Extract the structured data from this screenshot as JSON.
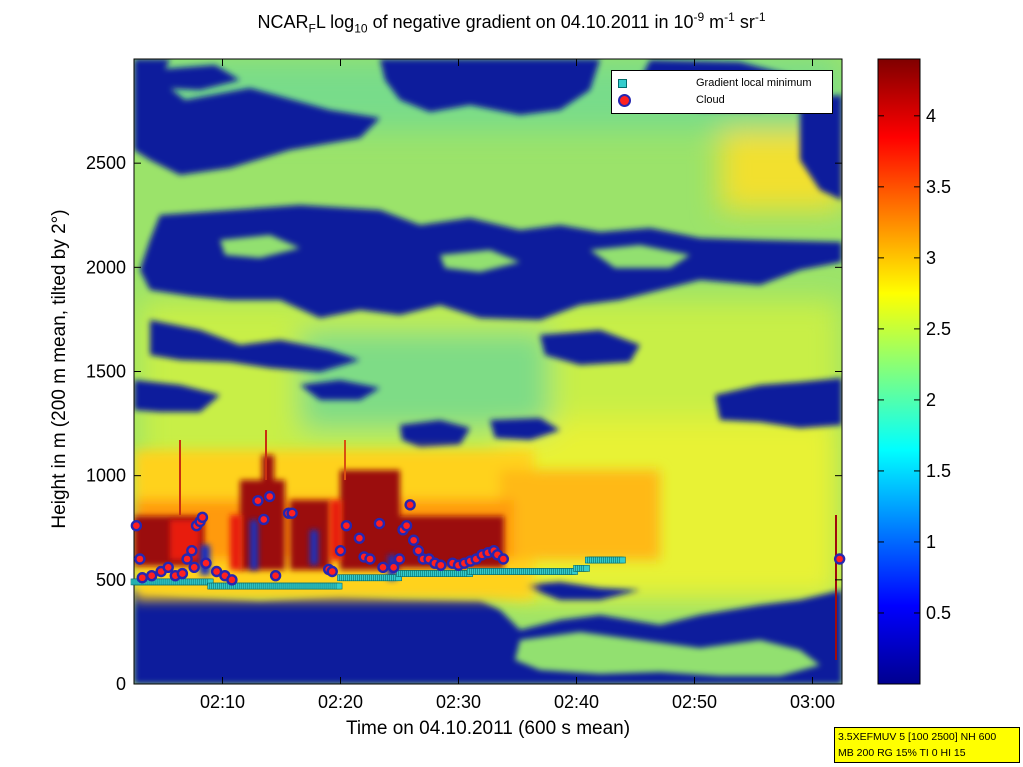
{
  "title": {
    "prefix": "NCAR",
    "sub1": "F",
    "mid1": "L log",
    "sub2": "10",
    "mid2": " of negative gradient on 04.10.2011 in 10",
    "sup1": "-9",
    "mid3": " m",
    "sup2": "-1",
    "mid4": " sr",
    "sup3": "-1"
  },
  "xlabel": "Time on 04.10.2011 (600 s mean)",
  "ylabel": "Height in m (200 m mean, tilted by 2°)",
  "legend": {
    "items": [
      {
        "label": "Gradient local minimum",
        "marker": "square",
        "color": "#33cccc"
      },
      {
        "label": "Cloud",
        "marker": "circle",
        "color": "#ff2020",
        "edge": "#2626b0"
      }
    ]
  },
  "stamp": {
    "line1": "3.5XEFMUV 5 [100 2500] NH 600",
    "line2": "MB 200 RG 15% TI 0 HI 15"
  },
  "chart_data": {
    "type": "heatmap",
    "x_axis": {
      "range_min": 122.5,
      "range_max": 182.5,
      "ticks": [
        130,
        140,
        150,
        160,
        170,
        180
      ],
      "tick_labels": [
        "02:10",
        "02:20",
        "02:30",
        "02:40",
        "02:50",
        "03:00"
      ]
    },
    "y_axis": {
      "range": [
        0,
        3000
      ],
      "ticks": [
        0,
        500,
        1000,
        1500,
        2000,
        2500
      ],
      "tick_labels": [
        "0",
        "500",
        "1000",
        "1500",
        "2000",
        "2500"
      ]
    },
    "colorbar": {
      "range": [
        0,
        4.4
      ],
      "ticks": [
        0.5,
        1,
        1.5,
        2,
        2.5,
        3,
        3.5,
        4
      ],
      "tick_labels": [
        "0.5",
        "1",
        "1.5",
        "2",
        "2.5",
        "3",
        "3.5",
        "4"
      ],
      "colormap": "jet"
    },
    "gradient_local_minimum": [
      {
        "t_start": 122.5,
        "t_end": 129,
        "height": 490
      },
      {
        "t_start": 129,
        "t_end": 140,
        "height": 470
      },
      {
        "t_start": 140,
        "t_end": 145,
        "height": 510
      },
      {
        "t_start": 145,
        "t_end": 151,
        "height": 530
      },
      {
        "t_start": 151,
        "t_end": 160,
        "height": 540
      },
      {
        "t_start": 160,
        "t_end": 161,
        "height": 555
      },
      {
        "t_start": 161,
        "t_end": 164,
        "height": 595
      }
    ],
    "cloud": [
      [
        122.7,
        760
      ],
      [
        123,
        600
      ],
      [
        123.2,
        510
      ],
      [
        124,
        520
      ],
      [
        124.8,
        540
      ],
      [
        125.4,
        560
      ],
      [
        126,
        520
      ],
      [
        126.6,
        530
      ],
      [
        127,
        600
      ],
      [
        127.4,
        640
      ],
      [
        127.6,
        560
      ],
      [
        127.8,
        760
      ],
      [
        128.1,
        780
      ],
      [
        128.3,
        800
      ],
      [
        128.6,
        580
      ],
      [
        129.5,
        540
      ],
      [
        130.2,
        520
      ],
      [
        130.8,
        500
      ],
      [
        133,
        880
      ],
      [
        133.5,
        790
      ],
      [
        134,
        900
      ],
      [
        134.5,
        520
      ],
      [
        135.6,
        820
      ],
      [
        135.9,
        820
      ],
      [
        139,
        550
      ],
      [
        139.3,
        540
      ],
      [
        140,
        640
      ],
      [
        140.5,
        760
      ],
      [
        141.6,
        700
      ],
      [
        142,
        610
      ],
      [
        142.5,
        600
      ],
      [
        143.3,
        770
      ],
      [
        143.6,
        560
      ],
      [
        144.5,
        560
      ],
      [
        145,
        600
      ],
      [
        145.3,
        740
      ],
      [
        145.6,
        760
      ],
      [
        145.9,
        860
      ],
      [
        146.2,
        690
      ],
      [
        146.6,
        640
      ],
      [
        147,
        600
      ],
      [
        147.5,
        600
      ],
      [
        148,
        580
      ],
      [
        148.5,
        570
      ],
      [
        149.5,
        580
      ],
      [
        150,
        570
      ],
      [
        150.5,
        580
      ],
      [
        151,
        590
      ],
      [
        151.5,
        600
      ],
      [
        152,
        620
      ],
      [
        152.5,
        630
      ],
      [
        153,
        640
      ],
      [
        153.3,
        620
      ],
      [
        153.8,
        600
      ],
      [
        182.3,
        600
      ]
    ]
  }
}
